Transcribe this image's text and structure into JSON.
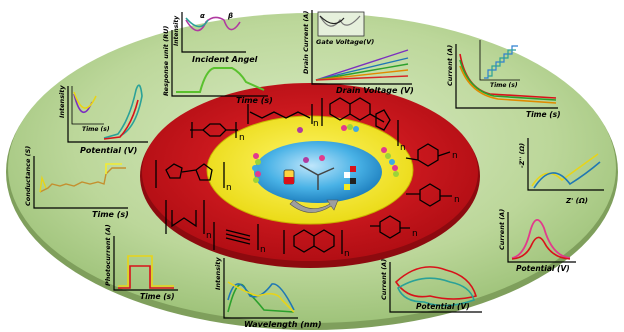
{
  "figure": {
    "polymer_ring": {
      "repeat_subscript": "n"
    },
    "panels": {
      "spr": {
        "ylabel": "Intensity",
        "xlabel": "Incident Angel",
        "marks": [
          "α",
          "β"
        ]
      },
      "response": {
        "ylabel": "Response unit (RU)",
        "xlabel": "Time (s)"
      },
      "fet": {
        "ylabel": "Drain Current (A)",
        "xlabel": "Drain Voltage (V)",
        "inset_label": "Gate Voltage(V)"
      },
      "amperometry": {
        "ylabel": "Current (A)",
        "xlabel": "Time (s)",
        "inset_xlabel": "Time (s)"
      },
      "ecl": {
        "ylabel": "Intensity",
        "xlabel": "Potential (V)",
        "inset_xlabel": "Time (s)"
      },
      "conductance": {
        "ylabel": "Conductance (S)",
        "xlabel": "Time (s)"
      },
      "impedance": {
        "ylabel": "-Z'' (Ω)",
        "xlabel": "Z' (Ω)"
      },
      "photocurrent": {
        "ylabel": "Photocurrent (A)",
        "xlabel": "Time (s)"
      },
      "spectra": {
        "ylabel": "Intensity",
        "xlabel": "Wavelength (nm)"
      },
      "cv": {
        "ylabel": "Current (A)",
        "xlabel": "Potential (V)"
      },
      "dpv": {
        "ylabel": "Current (A)",
        "xlabel": "Potential (V)"
      }
    },
    "colors": {
      "outer_disc": "#bcd79a",
      "red_ring": "#d8121a",
      "yellow_ring": "#f5ec21",
      "center": "#3fa9e0"
    }
  }
}
